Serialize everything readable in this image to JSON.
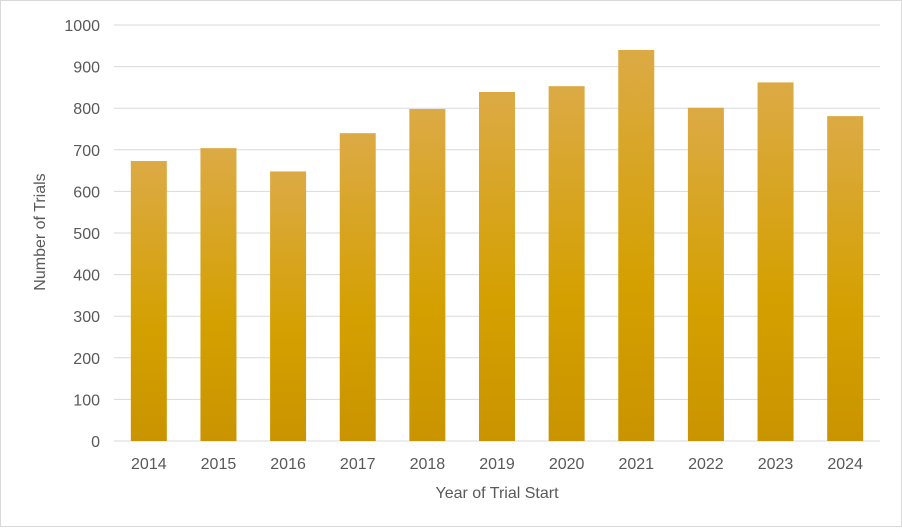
{
  "chart_data": {
    "type": "bar",
    "title": "",
    "xlabel": "Year of Trial Start",
    "ylabel": "Number of Trials",
    "categories": [
      "2014",
      "2015",
      "2016",
      "2017",
      "2018",
      "2019",
      "2020",
      "2021",
      "2022",
      "2023",
      "2024"
    ],
    "values": [
      673,
      704,
      648,
      740,
      798,
      839,
      853,
      940,
      801,
      862,
      781
    ],
    "ylim": [
      0,
      1000
    ],
    "yticks": [
      "0",
      "100",
      "200",
      "300",
      "400",
      "500",
      "600",
      "700",
      "800",
      "900",
      "1000"
    ],
    "grid": true,
    "legend": "none",
    "colors": {
      "bar_top": "#dcaa45",
      "bar_mid": "#d4a000",
      "bar_bottom": "#c99400",
      "grid": "#d9d9d9",
      "axis_text": "#595959"
    }
  }
}
